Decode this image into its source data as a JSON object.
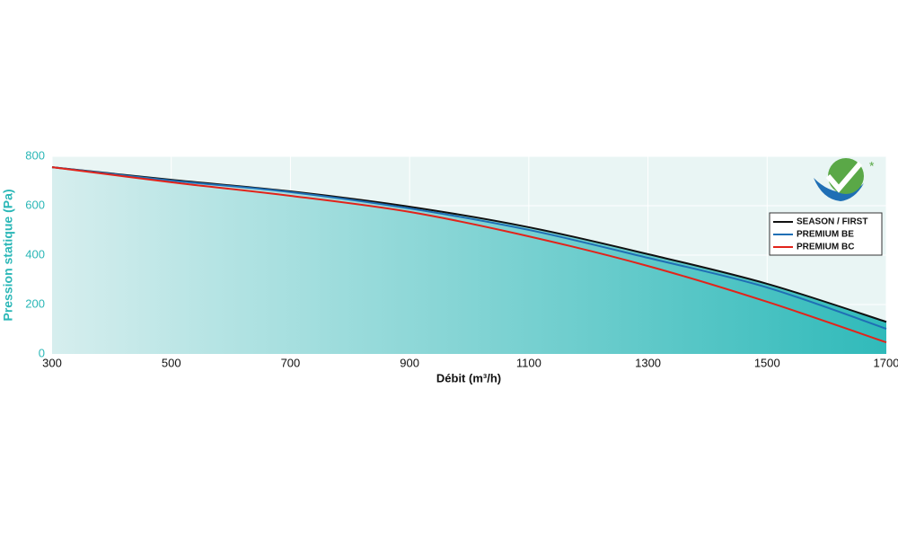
{
  "chart_data": {
    "type": "line",
    "x_label": "Débit (m³/h)",
    "y_label": "Pression statique (Pa)",
    "x": [
      300,
      500,
      700,
      900,
      1100,
      1300,
      1500,
      1700
    ],
    "series": [
      {
        "name": "SEASON / FIRST",
        "color": "#111111",
        "values": [
          756,
          705,
          658,
          596,
          513,
          404,
          284,
          130
        ]
      },
      {
        "name": "PREMIUM BE",
        "color": "#1f6fb5",
        "values": [
          756,
          702,
          655,
          589,
          502,
          389,
          269,
          102
        ]
      },
      {
        "name": "PREMIUM BC",
        "color": "#e2231a",
        "values": [
          756,
          695,
          640,
          575,
          476,
          356,
          211,
          47
        ]
      }
    ],
    "xlim": [
      300,
      1700
    ],
    "xticks": [
      300,
      500,
      700,
      900,
      1100,
      1300,
      1500,
      1700
    ],
    "ylim": [
      0,
      800
    ],
    "yticks": [
      0,
      200,
      400,
      600,
      800
    ],
    "grid": true,
    "legend": "upper right"
  }
}
